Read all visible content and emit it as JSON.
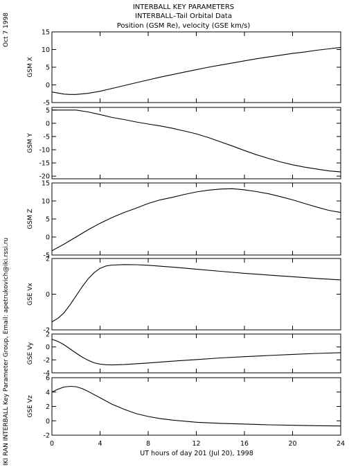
{
  "figure": {
    "title_lines": [
      "INTERBALL KEY PARAMETERS",
      "INTERBALL–Tail Orbital Data",
      "Position (GSM Re), velocity (GSE km/s)"
    ],
    "date_label": "Oct  7 1998",
    "credit_label": "IKI RAN INTERBALL Key Parameter Group, Email: apetrukovich@iki.rssi.ru"
  },
  "chart_data": {
    "type": "line",
    "xlabel": "UT hours of day 201 (Jul 20), 1998",
    "xlim": [
      0,
      24
    ],
    "xticks": [
      0,
      4,
      8,
      12,
      16,
      20,
      24
    ],
    "grid": false,
    "panels": [
      {
        "name": "GSM X",
        "ylim": [
          -5,
          15
        ],
        "yticks": [
          -5,
          0,
          5,
          10,
          15
        ],
        "x": [
          0,
          1,
          1.5,
          2,
          3,
          4,
          5,
          6,
          7,
          8,
          9,
          10,
          11,
          12,
          13,
          14,
          15,
          16,
          17,
          18,
          19,
          20,
          21,
          22,
          23,
          24
        ],
        "y": [
          -2.0,
          -2.6,
          -2.7,
          -2.7,
          -2.4,
          -1.8,
          -1.0,
          -0.2,
          0.6,
          1.4,
          2.2,
          2.9,
          3.6,
          4.3,
          5.0,
          5.6,
          6.2,
          6.8,
          7.4,
          7.9,
          8.4,
          8.9,
          9.3,
          9.8,
          10.2,
          10.6
        ]
      },
      {
        "name": "GSM Y",
        "ylim": [
          -21,
          6
        ],
        "yticks": [
          -20,
          -15,
          -10,
          -5,
          0,
          5
        ],
        "x": [
          0,
          1,
          2,
          3,
          4,
          5,
          6,
          7,
          8,
          9,
          10,
          11,
          12,
          13,
          14,
          15,
          16,
          17,
          18,
          19,
          20,
          21,
          22,
          23,
          24
        ],
        "y": [
          5.0,
          5.0,
          5.0,
          4.3,
          3.3,
          2.2,
          1.4,
          0.5,
          -0.3,
          -1.0,
          -1.9,
          -2.9,
          -4.0,
          -5.4,
          -7.0,
          -8.6,
          -10.3,
          -11.9,
          -13.3,
          -14.6,
          -15.7,
          -16.6,
          -17.3,
          -18.0,
          -18.4
        ]
      },
      {
        "name": "GSM Z",
        "ylim": [
          -5,
          15
        ],
        "yticks": [
          -5,
          0,
          5,
          10,
          15
        ],
        "x": [
          0,
          1,
          2,
          3,
          4,
          5,
          6,
          7,
          8,
          9,
          10,
          11,
          12,
          13,
          14,
          15,
          16,
          17,
          18,
          19,
          20,
          21,
          22,
          23,
          24
        ],
        "y": [
          -3.8,
          -2.0,
          0.0,
          2.0,
          3.8,
          5.4,
          6.8,
          8.0,
          9.3,
          10.3,
          11.0,
          11.8,
          12.5,
          13.0,
          13.3,
          13.4,
          13.1,
          12.6,
          12.0,
          11.2,
          10.3,
          9.3,
          8.3,
          7.4,
          6.8
        ]
      },
      {
        "name": "GSE Vx",
        "ylim": [
          -2,
          2
        ],
        "yticks": [
          -2,
          0,
          2
        ],
        "x": [
          0,
          0.5,
          1,
          1.5,
          2,
          2.5,
          3,
          3.5,
          4,
          4.5,
          5,
          6,
          7,
          8,
          10,
          12,
          14,
          16,
          18,
          20,
          22,
          24
        ],
        "y": [
          -1.55,
          -1.35,
          -1.05,
          -0.6,
          -0.1,
          0.4,
          0.85,
          1.2,
          1.45,
          1.58,
          1.63,
          1.66,
          1.65,
          1.62,
          1.52,
          1.4,
          1.28,
          1.17,
          1.07,
          0.98,
          0.88,
          0.8
        ]
      },
      {
        "name": "GSE Vy",
        "ylim": [
          -4,
          2
        ],
        "yticks": [
          -4,
          -2,
          0,
          2
        ],
        "x": [
          0,
          0.5,
          1,
          1.5,
          2,
          2.5,
          3,
          3.5,
          4,
          4.5,
          5,
          6,
          7,
          8,
          10,
          12,
          14,
          16,
          18,
          20,
          22,
          24
        ],
        "y": [
          1.2,
          0.85,
          0.35,
          -0.3,
          -0.95,
          -1.55,
          -2.05,
          -2.45,
          -2.65,
          -2.75,
          -2.78,
          -2.72,
          -2.6,
          -2.48,
          -2.2,
          -1.95,
          -1.7,
          -1.5,
          -1.32,
          -1.15,
          -1.0,
          -0.88
        ]
      },
      {
        "name": "GSE Vz",
        "ylim": [
          -2,
          6
        ],
        "yticks": [
          -2,
          0,
          2,
          4,
          6
        ],
        "x": [
          0,
          0.5,
          1,
          1.5,
          2,
          2.5,
          3,
          4,
          5,
          6,
          7,
          8,
          9,
          10,
          12,
          14,
          16,
          18,
          20,
          22,
          24
        ],
        "y": [
          4.0,
          4.4,
          4.7,
          4.8,
          4.75,
          4.5,
          4.1,
          3.2,
          2.3,
          1.6,
          1.0,
          0.6,
          0.3,
          0.1,
          -0.2,
          -0.35,
          -0.45,
          -0.55,
          -0.62,
          -0.68,
          -0.72
        ]
      }
    ]
  }
}
